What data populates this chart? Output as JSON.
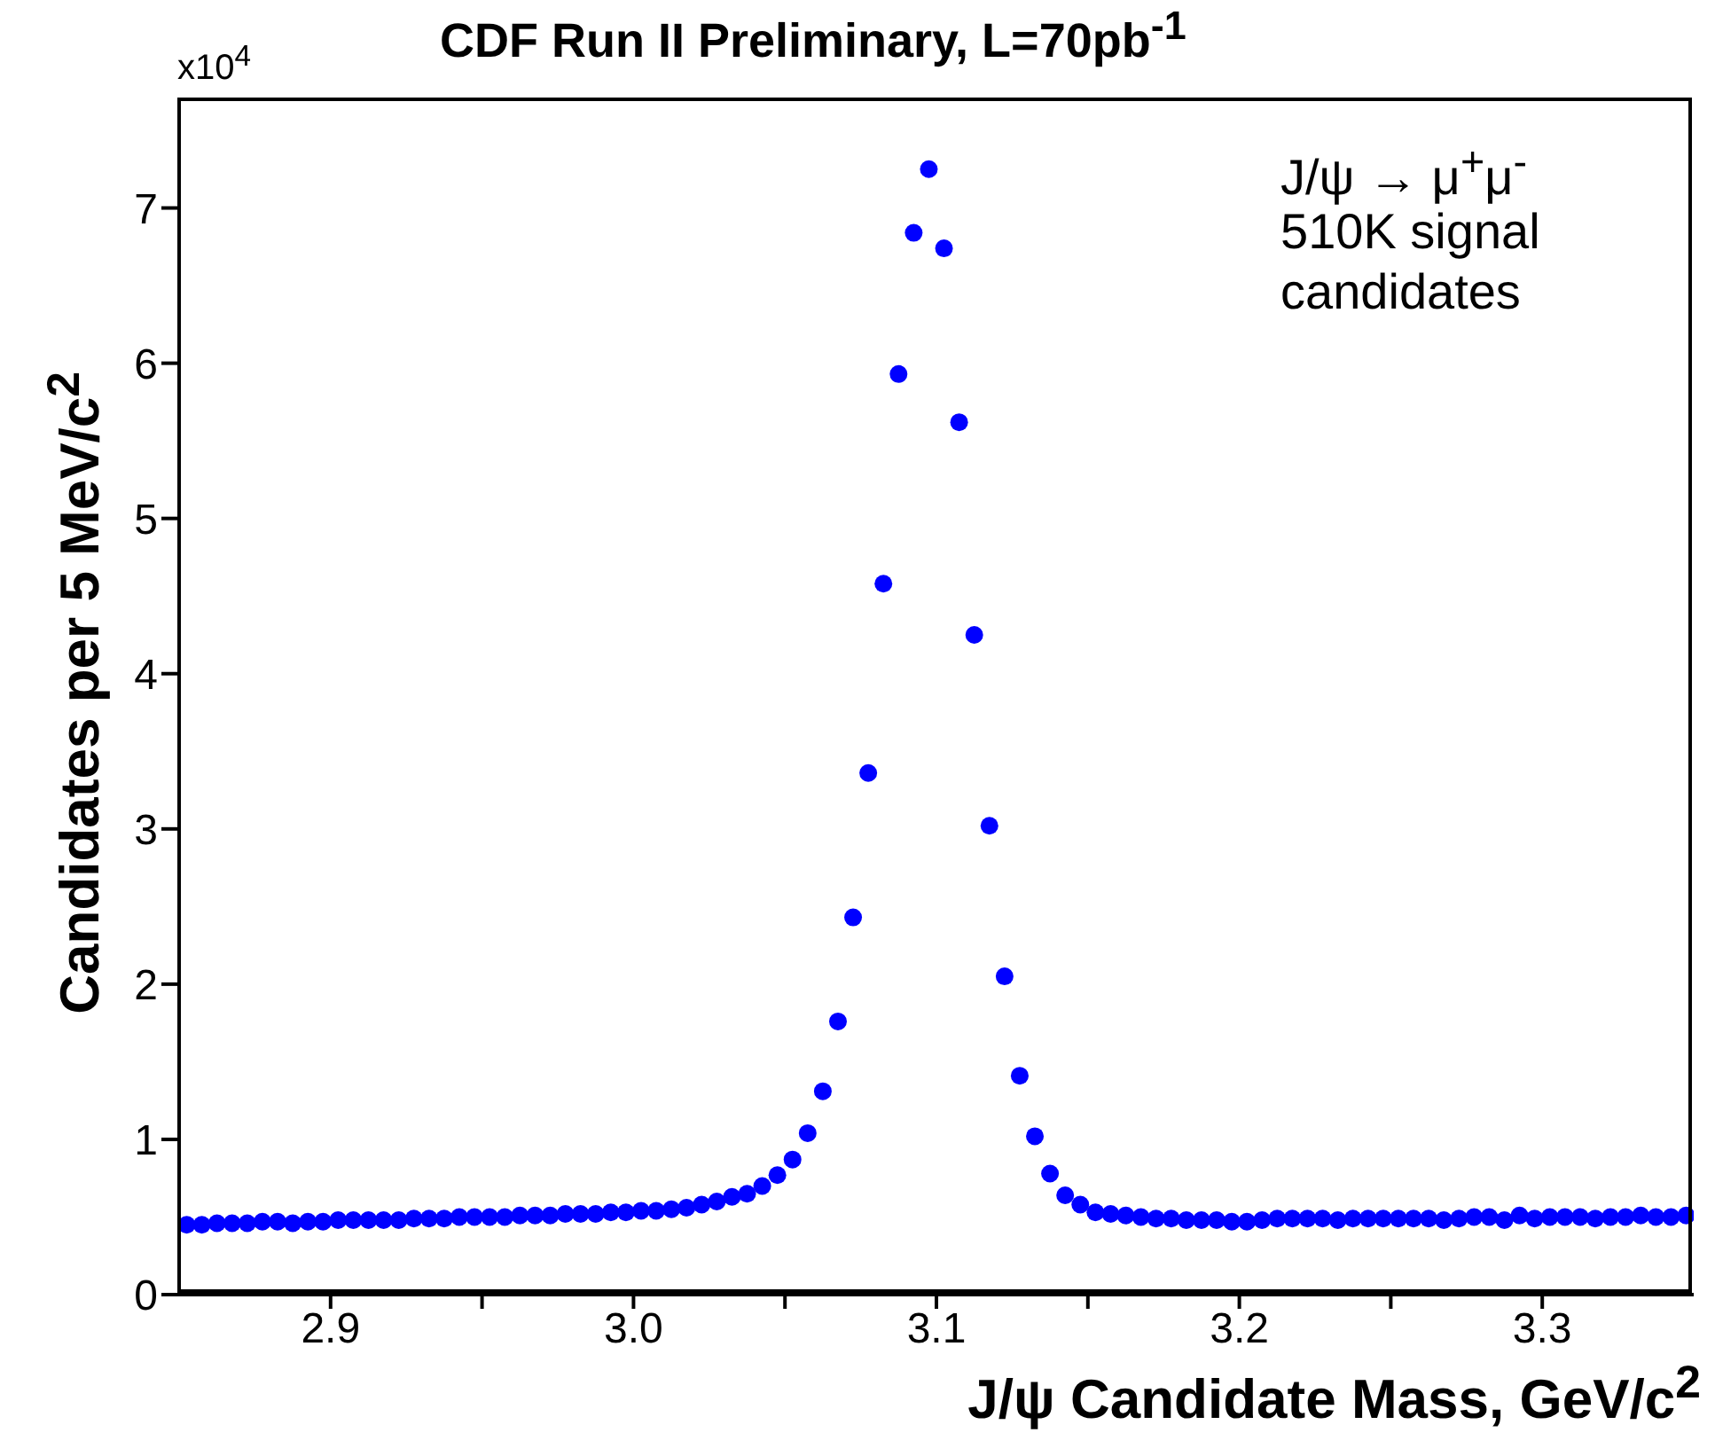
{
  "chart_data": {
    "type": "scatter",
    "title": "CDF Run II Preliminary, L=70pb$^{-1}$",
    "xlabel": "J/ψ Candidate Mass, GeV/c$^{2}$",
    "ylabel": "Candidates per 5 MeV/c$^{2}$",
    "annotations": [
      "x10$^{4}$",
      "J/ψ → μ$^{+}$μ$^{-}$",
      "510K signal candidates"
    ],
    "x": [
      2.8525,
      2.8575,
      2.8625,
      2.8675,
      2.8725,
      2.8775,
      2.8825,
      2.8875,
      2.8925,
      2.8975,
      2.9025,
      2.9075,
      2.9125,
      2.9175,
      2.9225,
      2.9275,
      2.9325,
      2.9375,
      2.9425,
      2.9475,
      2.9525,
      2.9575,
      2.9625,
      2.9675,
      2.9725,
      2.9775,
      2.9825,
      2.9875,
      2.9925,
      2.9975,
      3.0025,
      3.0075,
      3.0125,
      3.0175,
      3.0225,
      3.0275,
      3.0325,
      3.0375,
      3.0425,
      3.0475,
      3.0525,
      3.0575,
      3.0625,
      3.0675,
      3.0725,
      3.0775,
      3.0825,
      3.0875,
      3.0925,
      3.0975,
      3.1025,
      3.1075,
      3.1125,
      3.1175,
      3.1225,
      3.1275,
      3.1325,
      3.1375,
      3.1425,
      3.1475,
      3.1525,
      3.1575,
      3.1625,
      3.1675,
      3.1725,
      3.1775,
      3.1825,
      3.1875,
      3.1925,
      3.1975,
      3.2025,
      3.2075,
      3.2125,
      3.2175,
      3.2225,
      3.2275,
      3.2325,
      3.2375,
      3.2425,
      3.2475,
      3.2525,
      3.2575,
      3.2625,
      3.2675,
      3.2725,
      3.2775,
      3.2825,
      3.2875,
      3.2925,
      3.2975,
      3.3025,
      3.3075,
      3.3125,
      3.3175,
      3.3225,
      3.3275,
      3.3325,
      3.3375,
      3.3425,
      3.3475
    ],
    "series": [
      {
        "color": "#0000ff",
        "values": [
          0.45,
          0.45,
          0.46,
          0.46,
          0.46,
          0.47,
          0.47,
          0.46,
          0.47,
          0.47,
          0.48,
          0.48,
          0.48,
          0.48,
          0.48,
          0.49,
          0.49,
          0.49,
          0.5,
          0.5,
          0.5,
          0.5,
          0.51,
          0.51,
          0.51,
          0.52,
          0.52,
          0.52,
          0.53,
          0.53,
          0.54,
          0.54,
          0.55,
          0.56,
          0.58,
          0.6,
          0.63,
          0.65,
          0.7,
          0.77,
          0.87,
          1.04,
          1.31,
          1.76,
          2.43,
          3.36,
          4.58,
          5.93,
          6.84,
          7.25,
          6.74,
          5.62,
          4.25,
          3.02,
          2.05,
          1.41,
          1.02,
          0.78,
          0.64,
          0.58,
          0.53,
          0.52,
          0.51,
          0.5,
          0.49,
          0.49,
          0.48,
          0.48,
          0.48,
          0.47,
          0.47,
          0.48,
          0.49,
          0.49,
          0.49,
          0.49,
          0.48,
          0.49,
          0.49,
          0.49,
          0.49,
          0.49,
          0.49,
          0.48,
          0.49,
          0.5,
          0.5,
          0.48,
          0.51,
          0.49,
          0.5,
          0.5,
          0.5,
          0.49,
          0.5,
          0.5,
          0.51,
          0.5,
          0.5,
          0.51
        ]
      }
    ],
    "xlim": [
      2.85,
      3.35
    ],
    "xticks": [
      2.9,
      {
        "value": 2.95,
        "label": null
      },
      {
        "value": 3.0,
        "label": "3.0"
      },
      {
        "value": 3.05,
        "label": null
      },
      3.1,
      {
        "value": 3.15,
        "label": null
      },
      3.2,
      {
        "value": 3.25,
        "label": null
      },
      3.3
    ],
    "ylim": [
      0,
      7.7
    ],
    "yticks": [
      0,
      1,
      2,
      3,
      4,
      5,
      6,
      7
    ],
    "marker": "circle",
    "grid": false
  }
}
